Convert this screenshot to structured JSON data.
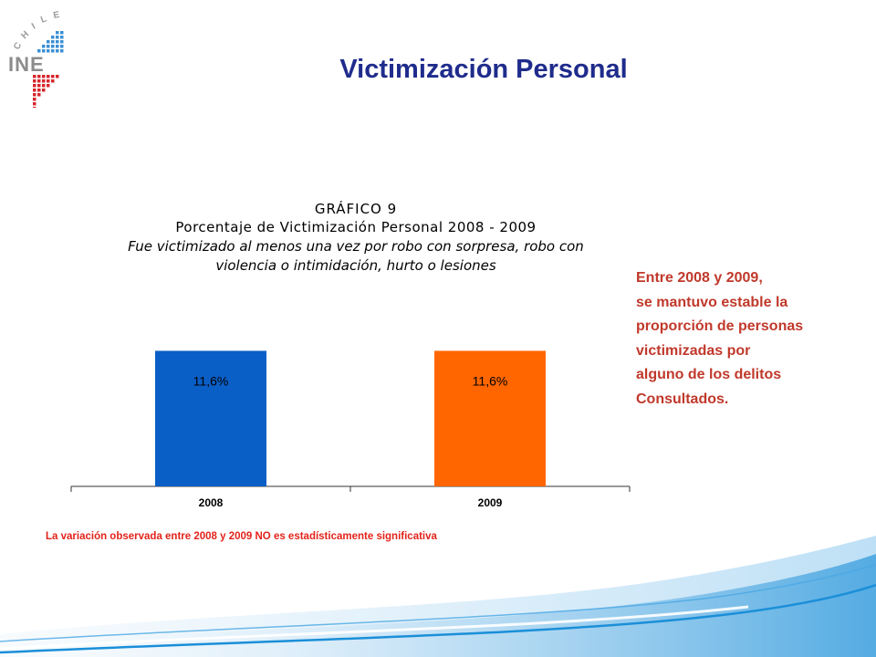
{
  "logo": {
    "top_text": "CHILE",
    "main_text": "INE"
  },
  "title": "Victimización Personal",
  "chart_data": {
    "type": "bar",
    "title": "GRÁFICO 9",
    "subtitle": "Porcentaje de Victimización Personal 2008 - 2009",
    "description_lines": [
      "Fue victimizado al menos una vez por robo con sorpresa, robo con",
      "violencia o intimidación, hurto o lesiones"
    ],
    "categories": [
      "2008",
      "2009"
    ],
    "values": [
      11.6,
      11.6
    ],
    "data_labels": [
      "11,6%",
      "11,6%"
    ],
    "colors": [
      "#0a5fc7",
      "#ff6600"
    ],
    "ylim": [
      0,
      13.9
    ],
    "xlabel": "",
    "ylabel": "",
    "grid": false
  },
  "side_text": [
    "Entre 2008 y 2009,",
    "se mantuvo estable la",
    "proporción de personas",
    "victimizadas por",
    "alguno de los delitos",
    "Consultados."
  ],
  "footnote": "La variación observada entre 2008 y 2009 NO es estadísticamente significativa",
  "colors": {
    "title": "#1f2c8c",
    "side_text": "#c0392b",
    "footnote": "#e2231a",
    "wave_blue": "#1b8fd8"
  }
}
